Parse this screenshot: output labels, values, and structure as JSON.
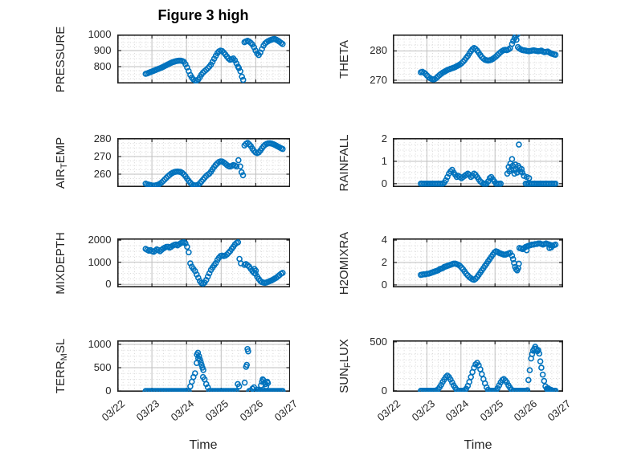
{
  "title": "Figure 3 high",
  "xlabel": "Time",
  "colors": {
    "marker": "#0072BD",
    "axis_text": "#262626",
    "major_grid": "#bfbfbf",
    "minor_grid": "#d6d6d6",
    "box": "#1f1f1f"
  },
  "x_tick_labels": [
    "03/22",
    "03/23",
    "03/24",
    "03/25",
    "03/26",
    "03/27"
  ],
  "chart_data": [
    {
      "type": "scatter",
      "name": "pressure",
      "ylabel_parts": [
        {
          "t": "PRESSURE"
        }
      ],
      "ylim": [
        695,
        1000
      ],
      "yticks": [
        800,
        900,
        1000
      ],
      "minor_step": 25,
      "y": [
        755,
        758,
        762,
        766,
        770,
        774,
        778,
        782,
        786,
        790,
        794,
        799,
        804,
        809,
        814,
        819,
        824,
        828,
        831,
        834,
        836,
        837,
        837,
        835,
        830,
        815,
        795,
        772,
        748,
        732,
        720,
        714,
        713,
        720,
        734,
        750,
        763,
        772,
        780,
        790,
        800,
        813,
        830,
        849,
        867,
        884,
        895,
        900,
        897,
        888,
        876,
        863,
        851,
        843,
        846,
        851,
        839,
        820,
        800,
        null,
        null,
        null,
        952,
        957,
        961,
        956,
        948,
        938,
        921,
        900,
        882,
        872,
        888,
        910,
        931,
        945,
        953,
        959,
        964,
        968,
        971,
        972,
        968,
        962,
        955,
        948,
        941
      ],
      "extra": [
        [
          3.51,
          791
        ],
        [
          3.555,
          771
        ],
        [
          3.6,
          737
        ],
        [
          3.635,
          717
        ]
      ]
    },
    {
      "type": "scatter",
      "name": "theta",
      "ylabel_parts": [
        {
          "t": "THETA"
        }
      ],
      "ylim": [
        268.9,
        285.6
      ],
      "yticks": [
        270,
        280
      ],
      "minor_step": 2,
      "y": [
        272.7,
        272.9,
        272.6,
        272.2,
        271.6,
        271.1,
        270.7,
        270.4,
        270.3,
        270.4,
        270.8,
        271.3,
        271.8,
        272.2,
        272.6,
        272.9,
        273.2,
        273.5,
        273.7,
        273.9,
        274.1,
        274.3,
        274.5,
        274.8,
        275.1,
        275.4,
        275.8,
        276.3,
        276.9,
        277.6,
        278.3,
        279.1,
        279.9,
        280.6,
        281.0,
        280.7,
        280.1,
        279.4,
        278.6,
        277.9,
        277.4,
        277.0,
        276.8,
        276.7,
        276.8,
        277.0,
        277.3,
        277.7,
        278.1,
        278.6,
        279.1,
        279.6,
        280.0,
        280.3,
        280.4,
        280.3,
        280.5,
        280.9,
        null,
        null,
        null,
        null,
        281.3,
        280.8,
        280.5,
        280.3,
        280.2,
        280.1,
        280.0,
        279.9,
        280.0,
        280.1,
        280.2,
        280.1,
        280.0,
        279.9,
        280.0,
        280.1,
        279.8,
        279.6,
        279.7,
        279.8,
        279.5,
        279.2,
        279.0,
        278.8,
        278.7
      ],
      "extra": [
        [
          3.5,
          282.4
        ],
        [
          3.535,
          283.4
        ],
        [
          3.575,
          284.4
        ],
        [
          3.61,
          285.2
        ],
        [
          3.65,
          285.6
        ],
        [
          3.63,
          283.8
        ]
      ]
    },
    {
      "type": "scatter",
      "name": "air-temp",
      "ylabel_parts": [
        {
          "t": "AIR"
        },
        {
          "t": "T",
          "sub": true
        },
        {
          "t": "EMP"
        }
      ],
      "ylim": [
        252.7,
        280.5
      ],
      "yticks": [
        260,
        270,
        280
      ],
      "minor_step": 2.5,
      "y": [
        254.6,
        254.3,
        254.0,
        253.8,
        253.6,
        253.5,
        253.6,
        253.8,
        254.1,
        254.6,
        255.3,
        256.1,
        257.0,
        257.9,
        258.8,
        259.6,
        260.3,
        260.8,
        261.2,
        261.4,
        261.5,
        261.4,
        261.2,
        260.7,
        259.9,
        258.8,
        257.5,
        256.2,
        255.1,
        254.3,
        253.8,
        253.6,
        253.7,
        254.1,
        254.8,
        255.8,
        256.9,
        258.0,
        259.0,
        259.7,
        260.3,
        261.4,
        262.8,
        264.1,
        265.3,
        266.2,
        266.9,
        267.3,
        267.2,
        266.7,
        266.0,
        265.2,
        264.6,
        264.3,
        264.7,
        265.2,
        264.9,
        264.4,
        null,
        null,
        null,
        null,
        276.3,
        277.2,
        277.8,
        277.0,
        276.0,
        274.5,
        273.2,
        272.4,
        272.0,
        272.4,
        273.4,
        274.7,
        275.9,
        276.7,
        277.2,
        277.5,
        277.6,
        277.4,
        277.1,
        276.7,
        276.2,
        275.7,
        275.2,
        274.7,
        274.3
      ],
      "extra": [
        [
          3.5,
          267.9
        ],
        [
          3.55,
          264.4
        ],
        [
          3.59,
          261.1
        ],
        [
          3.63,
          259.4
        ]
      ]
    },
    {
      "type": "scatter",
      "name": "rainfall",
      "ylabel_parts": [
        {
          "t": "RAINFALL"
        }
      ],
      "ylim": [
        -0.15,
        2.04
      ],
      "yticks": [
        0,
        1,
        2
      ],
      "minor_step": 0.25,
      "y": [
        0,
        0,
        0,
        0,
        0,
        0,
        0,
        0,
        0,
        0,
        0,
        0,
        0,
        0,
        0,
        0.05,
        0.15,
        0.3,
        0.45,
        0.55,
        0.62,
        0.5,
        0.4,
        0.3,
        0.35,
        0.3,
        0.25,
        0.3,
        0.35,
        0.4,
        0.45,
        0.4,
        0.3,
        0.35,
        0.45,
        0.4,
        0.3,
        0.2,
        0.1,
        0.05,
        0,
        0,
        0,
        0.1,
        0.25,
        0.3,
        0.2,
        0.1,
        0,
        0,
        0,
        0,
        null,
        null,
        null,
        null,
        null,
        null,
        null,
        null,
        null,
        null,
        null,
        null,
        null,
        null,
        null,
        0,
        0,
        0,
        0,
        0,
        0,
        0,
        0,
        0,
        0,
        0,
        0,
        0,
        0,
        0,
        0,
        0,
        0,
        0,
        0
      ],
      "extra": [
        [
          3.36,
          0.45
        ],
        [
          3.4,
          0.75
        ],
        [
          3.42,
          0.55
        ],
        [
          3.45,
          0.9
        ],
        [
          3.47,
          0.65
        ],
        [
          3.5,
          1.1
        ],
        [
          3.52,
          0.8
        ],
        [
          3.55,
          0.6
        ],
        [
          3.57,
          0.45
        ],
        [
          3.6,
          0.85
        ],
        [
          3.62,
          0.65
        ],
        [
          3.65,
          0.5
        ],
        [
          3.68,
          0.8
        ],
        [
          3.7,
          1.75
        ],
        [
          3.72,
          0.7
        ],
        [
          3.75,
          0.55
        ],
        [
          3.78,
          0.65
        ],
        [
          3.8,
          0.5
        ],
        [
          3.85,
          0.35
        ],
        [
          3.93,
          0.3
        ],
        [
          4.0,
          0.25
        ]
      ]
    },
    {
      "type": "scatter",
      "name": "mixdepth",
      "ylabel_parts": [
        {
          "t": "MIXDEPTH"
        }
      ],
      "ylim": [
        -135,
        2075
      ],
      "yticks": [
        0,
        1000,
        2000
      ],
      "minor_step": 250,
      "y": [
        1600,
        1560,
        1520,
        1550,
        1500,
        1470,
        1520,
        1580,
        1550,
        1500,
        1560,
        1620,
        1660,
        1690,
        1700,
        1660,
        1700,
        1750,
        1780,
        1800,
        1760,
        1810,
        1860,
        1890,
        1900,
        1850,
        1700,
        1450,
        950,
        800,
        700,
        600,
        450,
        300,
        150,
        60,
        30,
        80,
        200,
        350,
        500,
        650,
        760,
        860,
        960,
        1100,
        1200,
        1280,
        1300,
        1280,
        1300,
        1350,
        1420,
        1500,
        1600,
        1700,
        1800,
        1870,
        1900,
        null,
        null,
        null,
        880,
        920,
        860,
        800,
        700,
        600,
        520,
        480,
        350,
        250,
        150,
        100,
        80,
        70,
        90,
        120,
        150,
        180,
        220,
        260,
        300,
        360,
        420,
        480,
        520
      ],
      "extra": [
        [
          3.53,
          1150
        ],
        [
          3.57,
          950
        ],
        [
          3.96,
          700
        ],
        [
          4.0,
          620
        ]
      ]
    },
    {
      "type": "scatter",
      "name": "h2omixra",
      "ylabel_parts": [
        {
          "t": "H2OMIXRA"
        }
      ],
      "ylim": [
        -0.22,
        4.15
      ],
      "yticks": [
        0,
        2,
        4
      ],
      "minor_step": 0.5,
      "y": [
        0.9,
        0.92,
        0.95,
        0.95,
        1.0,
        1.0,
        1.05,
        1.1,
        1.15,
        1.2,
        1.25,
        1.3,
        1.4,
        1.45,
        1.5,
        1.6,
        1.65,
        1.7,
        1.75,
        1.8,
        1.85,
        1.9,
        1.9,
        1.85,
        1.8,
        1.7,
        1.55,
        1.4,
        1.2,
        1.0,
        0.85,
        0.7,
        0.6,
        0.5,
        0.45,
        0.55,
        0.7,
        0.9,
        1.1,
        1.3,
        1.5,
        1.7,
        1.9,
        2.1,
        2.3,
        2.5,
        2.7,
        2.9,
        3.0,
        2.95,
        2.85,
        2.8,
        2.75,
        2.7,
        2.7,
        2.75,
        2.8,
        2.85,
        null,
        null,
        null,
        null,
        null,
        3.3,
        3.25,
        3.2,
        3.3,
        3.4,
        3.45,
        3.5,
        3.55,
        3.6,
        3.6,
        3.65,
        3.65,
        3.7,
        3.7,
        3.65,
        3.6,
        3.65,
        3.7,
        3.65,
        3.6,
        3.55,
        3.5,
        3.55,
        3.6
      ],
      "extra": [
        [
          3.5,
          2.6
        ],
        [
          3.53,
          2.3
        ],
        [
          3.56,
          1.95
        ],
        [
          3.59,
          1.6
        ],
        [
          3.62,
          1.4
        ],
        [
          3.65,
          1.3
        ],
        [
          3.68,
          1.5
        ],
        [
          3.7,
          1.9
        ],
        [
          3.93,
          3.1
        ],
        [
          4.6,
          3.3
        ],
        [
          4.65,
          3.35
        ]
      ]
    },
    {
      "type": "scatter",
      "name": "terr-msl",
      "ylabel_parts": [
        {
          "t": "TERR"
        },
        {
          "t": "M",
          "sub": true
        },
        {
          "t": "SL"
        }
      ],
      "ylim": [
        -15,
        1085
      ],
      "yticks": [
        0,
        500,
        1000
      ],
      "minor_step": 125,
      "y": [
        0,
        0,
        0,
        0,
        0,
        0,
        0,
        0,
        0,
        0,
        0,
        0,
        0,
        0,
        0,
        0,
        0,
        0,
        0,
        0,
        0,
        0,
        0,
        0,
        0,
        0,
        0,
        0,
        100,
        200,
        300,
        380,
        600,
        700,
        null,
        null,
        300,
        250,
        150,
        80,
        0,
        0,
        0,
        0,
        0,
        0,
        0,
        0,
        0,
        0,
        0,
        0,
        0,
        0,
        0,
        0,
        0,
        0,
        null,
        null,
        null,
        null,
        null,
        null,
        null,
        0,
        0,
        50,
        80,
        0,
        30,
        0,
        0,
        0,
        0,
        0,
        0,
        0,
        0,
        0,
        0,
        0,
        0,
        0,
        0,
        0,
        0
      ],
      "extra": [
        [
          2.3,
          780
        ],
        [
          2.33,
          820
        ],
        [
          2.36,
          750
        ],
        [
          2.385,
          680
        ],
        [
          2.41,
          620
        ],
        [
          2.435,
          560
        ],
        [
          2.46,
          500
        ],
        [
          2.485,
          450
        ],
        [
          3.48,
          150
        ],
        [
          3.52,
          100
        ],
        [
          3.68,
          180
        ],
        [
          3.72,
          520
        ],
        [
          3.74,
          560
        ],
        [
          3.76,
          900
        ],
        [
          3.78,
          850
        ],
        [
          4.15,
          120
        ],
        [
          4.18,
          200
        ],
        [
          4.2,
          250
        ],
        [
          4.22,
          230
        ],
        [
          4.25,
          180
        ],
        [
          4.28,
          150
        ],
        [
          4.3,
          100
        ],
        [
          4.33,
          200
        ],
        [
          4.35,
          170
        ]
      ]
    },
    {
      "type": "scatter",
      "name": "sun-flux",
      "ylabel_parts": [
        {
          "t": "SUN"
        },
        {
          "t": "F",
          "sub": true
        },
        {
          "t": "LUX"
        }
      ],
      "ylim": [
        -10,
        515
      ],
      "yticks": [
        0,
        500
      ],
      "minor_step": 62.5,
      "y": [
        0,
        0,
        0,
        0,
        0,
        0,
        0,
        0,
        0,
        0,
        5,
        15,
        35,
        60,
        90,
        115,
        140,
        155,
        140,
        115,
        85,
        55,
        30,
        10,
        0,
        0,
        0,
        0,
        5,
        20,
        50,
        90,
        140,
        190,
        235,
        270,
        285,
        260,
        220,
        170,
        120,
        75,
        35,
        10,
        0,
        0,
        0,
        0,
        5,
        25,
        55,
        85,
        110,
        120,
        105,
        85,
        55,
        30,
        10,
        0,
        0,
        0,
        0,
        0,
        0,
        0,
        0,
        0,
        5,
        null,
        null,
        null,
        null,
        null,
        null,
        null,
        null,
        null,
        null,
        null,
        null,
        10,
        5,
        0,
        0,
        0,
        0
      ],
      "extra": [
        [
          3.98,
          110
        ],
        [
          4.02,
          210
        ],
        [
          4.06,
          330
        ],
        [
          4.09,
          375
        ],
        [
          4.12,
          410
        ],
        [
          4.15,
          430
        ],
        [
          4.18,
          450
        ],
        [
          4.21,
          430
        ],
        [
          4.24,
          405
        ],
        [
          4.27,
          415
        ],
        [
          4.3,
          380
        ],
        [
          4.33,
          300
        ],
        [
          4.36,
          235
        ],
        [
          4.4,
          165
        ],
        [
          4.44,
          100
        ],
        [
          4.48,
          45
        ],
        [
          4.52,
          20
        ],
        [
          4.56,
          25
        ],
        [
          4.6,
          15
        ],
        [
          4.64,
          10
        ]
      ]
    }
  ],
  "x_days": [
    0.82,
    0.866,
    0.912,
    0.958,
    1.004,
    1.05,
    1.096,
    1.142,
    1.188,
    1.234,
    1.28,
    1.326,
    1.372,
    1.418,
    1.464,
    1.51,
    1.556,
    1.602,
    1.648,
    1.694,
    1.74,
    1.786,
    1.832,
    1.878,
    1.924,
    1.97,
    2.016,
    2.062,
    2.108,
    2.154,
    2.2,
    2.246,
    2.292,
    2.338,
    2.384,
    2.43,
    2.476,
    2.522,
    2.568,
    2.614,
    2.66,
    2.706,
    2.752,
    2.798,
    2.844,
    2.89,
    2.936,
    2.982,
    3.028,
    3.074,
    3.12,
    3.166,
    3.212,
    3.258,
    3.304,
    3.35,
    3.396,
    3.442,
    3.488,
    3.534,
    3.58,
    3.626,
    3.672,
    3.718,
    3.764,
    3.81,
    3.856,
    3.902,
    3.948,
    3.994,
    4.04,
    4.086,
    4.132,
    4.178,
    4.224,
    4.27,
    4.316,
    4.362,
    4.408,
    4.454,
    4.5,
    4.546,
    4.592,
    4.638,
    4.684,
    4.73,
    4.776
  ],
  "xlim_days": [
    0,
    5
  ]
}
